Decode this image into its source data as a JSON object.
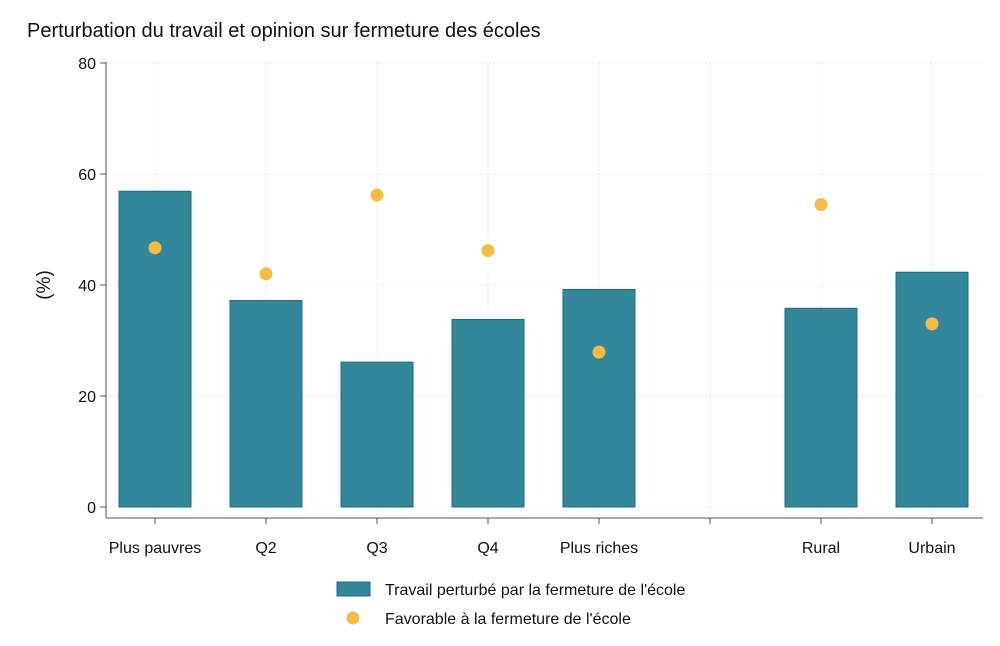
{
  "chart_data": {
    "type": "bar",
    "title": "Perturbation du travail et opinion sur fermeture des écoles",
    "ylabel": "(%)",
    "xlabel": "",
    "ylim": [
      0,
      80
    ],
    "yticks": [
      0,
      20,
      40,
      60,
      80
    ],
    "grid": true,
    "legend_position": "bottom",
    "categories": [
      "Plus pauvres",
      "Q2",
      "Q3",
      "Q4",
      "Plus riches",
      "",
      "Rural",
      "Urbain"
    ],
    "series": [
      {
        "name": "Travail perturbé par la fermeture de l'école",
        "type": "bar",
        "color": "#33879a",
        "values": [
          56.9,
          37.2,
          26.1,
          33.8,
          39.2,
          null,
          35.8,
          42.3
        ]
      },
      {
        "name": "Favorable à la fermeture de l'école",
        "type": "scatter",
        "color": "#f7bd42",
        "values": [
          46.7,
          42.0,
          56.2,
          46.2,
          27.9,
          null,
          54.5,
          33.0
        ]
      }
    ]
  }
}
